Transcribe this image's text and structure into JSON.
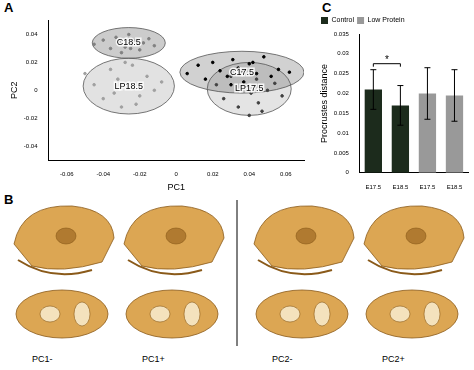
{
  "chart_data": [
    {
      "type": "scatter",
      "x_label": "PC1",
      "y_label": "PC2",
      "xlim": [
        -0.07,
        0.07
      ],
      "xticks": [
        -0.06,
        -0.04,
        -0.02,
        0,
        0.02,
        0.04,
        0.06
      ],
      "ylim": [
        -0.05,
        0.05
      ],
      "yticks": [
        -0.04,
        -0.02,
        0,
        0.02,
        0.04
      ],
      "grid": false,
      "series": [
        {
          "name": "C18.5",
          "color": "#808080",
          "x": [
            -0.045,
            -0.04,
            -0.036,
            -0.033,
            -0.03,
            -0.028,
            -0.026,
            -0.024,
            -0.022,
            -0.02,
            -0.018,
            -0.015,
            -0.012,
            -0.03,
            -0.025
          ],
          "y": [
            0.033,
            0.036,
            0.03,
            0.038,
            0.035,
            0.031,
            0.04,
            0.033,
            0.036,
            0.029,
            0.034,
            0.037,
            0.032,
            0.027,
            0.03
          ],
          "ellipse": {
            "cx": -0.026,
            "cy": 0.034,
            "rx": 0.02,
            "ry": 0.011
          }
        },
        {
          "name": "LP18.5",
          "color": "#a0a0a0",
          "x": [
            -0.05,
            -0.045,
            -0.04,
            -0.036,
            -0.032,
            -0.03,
            -0.027,
            -0.024,
            -0.02,
            -0.016,
            -0.012,
            -0.008,
            -0.034,
            -0.022,
            -0.028
          ],
          "y": [
            0.012,
            0.004,
            -0.006,
            0.015,
            0.008,
            -0.012,
            0.002,
            0.018,
            -0.004,
            0.01,
            0.0,
            0.006,
            -0.002,
            -0.01,
            0.02
          ],
          "ellipse": {
            "cx": -0.026,
            "cy": 0.003,
            "rx": 0.025,
            "ry": 0.02
          }
        },
        {
          "name": "C17.5",
          "color": "#000000",
          "x": [
            0.006,
            0.012,
            0.016,
            0.02,
            0.024,
            0.028,
            0.031,
            0.034,
            0.037,
            0.04,
            0.044,
            0.048,
            0.052,
            0.056,
            0.062,
            0.03,
            0.042
          ],
          "y": [
            0.012,
            0.018,
            0.008,
            0.02,
            0.014,
            0.01,
            0.022,
            0.016,
            0.006,
            0.019,
            0.012,
            0.024,
            0.01,
            0.015,
            0.013,
            0.004,
            0.02
          ],
          "ellipse": {
            "cx": 0.036,
            "cy": 0.013,
            "rx": 0.034,
            "ry": 0.015
          }
        },
        {
          "name": "LP17.5",
          "color": "#404040",
          "x": [
            0.022,
            0.026,
            0.03,
            0.034,
            0.038,
            0.041,
            0.044,
            0.047,
            0.05,
            0.054,
            0.058,
            0.036,
            0.045,
            0.04
          ],
          "y": [
            0.004,
            -0.006,
            0.01,
            -0.012,
            0.002,
            -0.002,
            0.008,
            -0.015,
            0.0,
            0.005,
            -0.004,
            0.014,
            -0.009,
            -0.018
          ],
          "ellipse": {
            "cx": 0.04,
            "cy": 0.001,
            "rx": 0.023,
            "ry": 0.019
          }
        }
      ]
    },
    {
      "type": "bar",
      "y_label": "Procrustes distance",
      "categories": [
        "E17.5",
        "E18.5",
        "E17.5",
        "E18.5"
      ],
      "ylim": [
        0,
        0.035
      ],
      "yticks": [
        0,
        0.005,
        0.01,
        0.015,
        0.02,
        0.025,
        0.03,
        0.035
      ],
      "grid": false,
      "legend": "top-left",
      "series": [
        {
          "name": "Control",
          "color": "#1c2b1c",
          "values": [
            0.021,
            0.017,
            null,
            null
          ],
          "errors": [
            0.005,
            0.005,
            null,
            null
          ]
        },
        {
          "name": "Low Protein",
          "color": "#999999",
          "values": [
            null,
            null,
            0.02,
            0.0195
          ],
          "errors": [
            null,
            null,
            0.0065,
            0.0065
          ]
        }
      ],
      "annotations": [
        {
          "text": "*",
          "between": [
            0,
            1
          ]
        }
      ]
    }
  ],
  "figure": {
    "panels": [
      "A",
      "B",
      "C"
    ],
    "renders": [
      "PC1-",
      "PC1+",
      "PC2-",
      "PC2+"
    ]
  }
}
